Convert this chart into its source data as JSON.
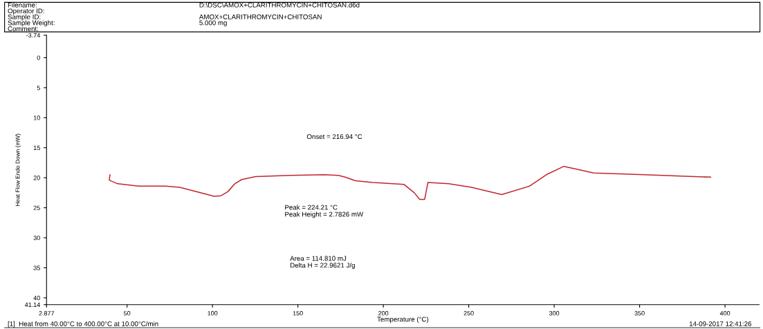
{
  "chart_data": {
    "type": "line",
    "xlabel": "Temperature (°C)",
    "ylabel": "Heat Flow Endo Down (mW)",
    "x": [
      40,
      39.6,
      44.5,
      56.6,
      72.7,
      80.8,
      92.9,
      101.0,
      105.0,
      109.1,
      113.1,
      117.1,
      125.2,
      145.4,
      165.6,
      173.6,
      177.7,
      183.7,
      193.8,
      212.0,
      218.1,
      221.3,
      224.2,
      226.1,
      238.2,
      251.6,
      269.3,
      285.5,
      296.0,
      305.7,
      315.0,
      323.0,
      352.5,
      391.6
    ],
    "series": [
      {
        "color": "#c0262d",
        "values": [
          19.5,
          20.4,
          21.0,
          21.4,
          21.4,
          21.6,
          22.5,
          23.1,
          23.0,
          22.3,
          21.0,
          20.3,
          19.8,
          19.6,
          19.5,
          19.6,
          19.9,
          20.5,
          20.8,
          21.1,
          22.5,
          23.6,
          23.6,
          20.8,
          21.0,
          21.6,
          22.8,
          21.4,
          19.4,
          18.1,
          18.7,
          19.2,
          19.5,
          19.9
        ]
      }
    ],
    "xlim": [
      2.877,
      420
    ],
    "ylim": [
      41.14,
      -3.74
    ],
    "xticks": [
      {
        "value": 2.877,
        "label": "2.877"
      },
      50,
      100,
      150,
      200,
      250,
      300,
      350,
      400
    ],
    "yticks": [
      {
        "value": -3.74,
        "label": "-3.74"
      },
      0,
      5,
      10,
      15,
      20,
      25,
      30,
      35,
      40,
      {
        "value": 41.14,
        "label": "41.14"
      }
    ],
    "grid": false,
    "legend": false,
    "marker": "none",
    "line_style": "solid",
    "annotations": [
      "Filename:",
      "D:\\DSC\\AMOX+CLARITHROMYCIN+CHITOSAN.d6d",
      "Operator ID:",
      "Sample ID:",
      "AMOX+CLARITHROMYCIN+CHITOSAN",
      "Sample Weight:",
      "5.000 mg",
      "Comment:",
      "Onset = 216.94 °C",
      "Peak = 224.21 °C",
      "Peak Height = 2.7826 mW",
      "Area = 114.810 mJ",
      "Delta H = 22.9621 J/g",
      "[1]  Heat from 40.00°C to 400.00°C at 10.00°C/min",
      "14-09-2017 12:41:26"
    ]
  }
}
